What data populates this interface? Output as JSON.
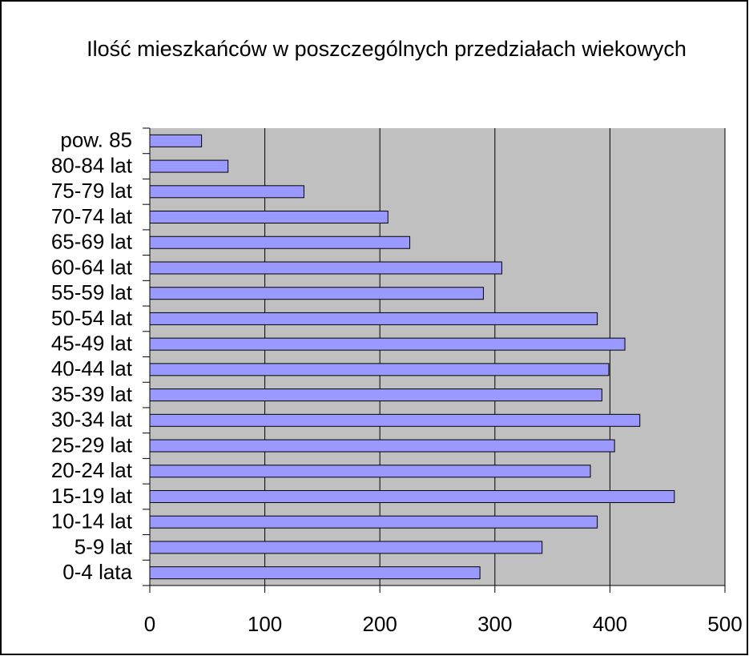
{
  "chart_data": {
    "type": "bar",
    "orientation": "horizontal",
    "title": "Ilość mieszkańców w poszczególnych przedziałach wiekowych",
    "categories": [
      "0-4 lata",
      "5-9 lat",
      "10-14 lat",
      "15-19 lat",
      "20-24 lat",
      "25-29 lat",
      "30-34 lat",
      "35-39 lat",
      "40-44 lat",
      "45-49 lat",
      "50-54 lat",
      "55-59 lat",
      "60-64 lat",
      "65-69 lat",
      "70-74 lat",
      "75-79 lat",
      "80-84 lat",
      "pow. 85"
    ],
    "values": [
      287,
      341,
      389,
      456,
      383,
      404,
      426,
      393,
      399,
      413,
      389,
      290,
      306,
      226,
      207,
      134,
      68,
      45
    ],
    "color": "#9999ff",
    "xlim": [
      0,
      500
    ],
    "xticks": [
      0,
      100,
      200,
      300,
      400,
      500
    ],
    "grid": true
  }
}
